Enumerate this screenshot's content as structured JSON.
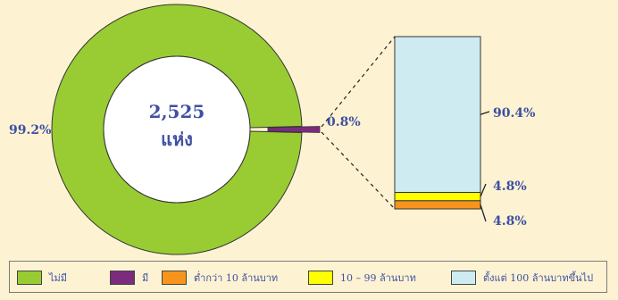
{
  "chart_data": [
    {
      "type": "pie",
      "style": "donut",
      "center_label": [
        "2,525",
        "แห่ง"
      ],
      "slices": [
        {
          "name": "ไม่มี",
          "value": 99.2,
          "label": "99.2%",
          "color": "#99CC33"
        },
        {
          "name": "มี",
          "value": 0.8,
          "label": "0.8%",
          "color": "#7B2C7E"
        }
      ]
    },
    {
      "type": "bar",
      "style": "stacked-100",
      "breakdown_of": "มี",
      "segments": [
        {
          "name": "ต่ำกว่า 10 ล้านบาท",
          "value": 4.8,
          "label": "4.8%",
          "color": "#F7941D"
        },
        {
          "name": "10 – 99 ล้านบาท",
          "value": 4.8,
          "label": "4.8%",
          "color": "#FFFF00"
        },
        {
          "name": "ตั้งแต่ 100 ล้านบาทขึ้นไป",
          "value": 90.4,
          "label": "90.4%",
          "color": "#CFEBF2"
        }
      ]
    }
  ],
  "legend": [
    {
      "label": "ไม่มี",
      "color": "#99CC33"
    },
    {
      "label": "มี",
      "color": "#7B2C7E"
    },
    {
      "label": "ต่ำกว่า 10 ล้านบาท",
      "color": "#F7941D"
    },
    {
      "label": "10 – 99 ล้านบาท",
      "color": "#FFFF00"
    },
    {
      "label": "ตั้งแต่ 100 ล้านบาทขึ้นไป",
      "color": "#CFEBF2"
    }
  ]
}
